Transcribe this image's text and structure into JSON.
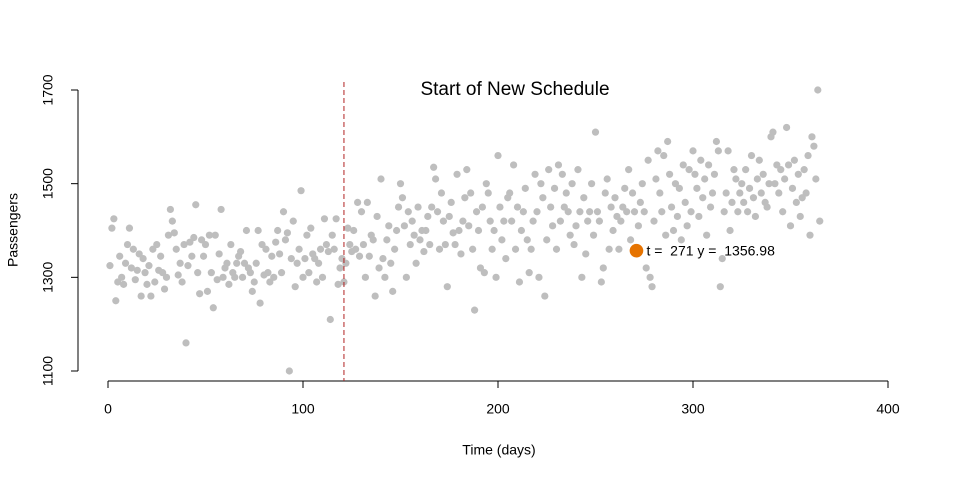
{
  "chart_data": {
    "type": "scatter",
    "x_label": "Time (days)",
    "y_label": "Passengers",
    "annotation": "Start of New Schedule",
    "annotation_color": "#b22222",
    "vline": {
      "x": 121,
      "color": "#b22222"
    },
    "highlight": {
      "x": 271,
      "y": 1356.98,
      "label": "t =  271 y =  1356.98",
      "color": "#e67300"
    },
    "xlim": [
      0,
      400
    ],
    "xticks": [
      0,
      100,
      200,
      300,
      400
    ],
    "ylim": [
      1100,
      1700
    ],
    "yticks": [
      1100,
      1300,
      1500,
      1700
    ],
    "series": [
      {
        "color": "#bebebe",
        "x": [
          1,
          2,
          3,
          4,
          5,
          6,
          7,
          8,
          9,
          10,
          11,
          12,
          13,
          14,
          15,
          16,
          17,
          18,
          19,
          20,
          21,
          22,
          23,
          24,
          25,
          26,
          27,
          28,
          29,
          30,
          31,
          32,
          33,
          34,
          35,
          36,
          37,
          38,
          39,
          40,
          41,
          42,
          43,
          44,
          45,
          46,
          47,
          48,
          49,
          50,
          51,
          52,
          53,
          54,
          55,
          56,
          57,
          58,
          59,
          60,
          61,
          62,
          63,
          64,
          65,
          66,
          67,
          68,
          69,
          70,
          71,
          72,
          73,
          74,
          75,
          76,
          77,
          78,
          79,
          80,
          81,
          82,
          83,
          84,
          85,
          86,
          87,
          88,
          89,
          90,
          91,
          92,
          93,
          94,
          95,
          96,
          97,
          98,
          99,
          100,
          101,
          102,
          103,
          104,
          105,
          106,
          107,
          108,
          109,
          110,
          111,
          112,
          113,
          114,
          115,
          116,
          117,
          118,
          119,
          120,
          121,
          122,
          123,
          124,
          125,
          126,
          127,
          128,
          129,
          130,
          131,
          132,
          133,
          134,
          135,
          136,
          137,
          138,
          139,
          140,
          141,
          142,
          143,
          144,
          145,
          146,
          147,
          148,
          149,
          150,
          151,
          152,
          153,
          154,
          155,
          156,
          157,
          158,
          159,
          160,
          161,
          162,
          163,
          164,
          165,
          166,
          167,
          168,
          169,
          170,
          171,
          172,
          173,
          174,
          175,
          176,
          177,
          178,
          179,
          180,
          181,
          182,
          183,
          184,
          185,
          186,
          187,
          188,
          189,
          190,
          191,
          192,
          193,
          194,
          195,
          196,
          197,
          198,
          199,
          200,
          201,
          202,
          203,
          204,
          205,
          206,
          207,
          208,
          209,
          210,
          211,
          212,
          213,
          214,
          215,
          216,
          217,
          218,
          219,
          220,
          221,
          222,
          223,
          224,
          225,
          226,
          227,
          228,
          229,
          230,
          231,
          232,
          233,
          234,
          235,
          236,
          237,
          238,
          239,
          240,
          241,
          242,
          243,
          244,
          245,
          246,
          247,
          248,
          249,
          250,
          251,
          252,
          253,
          254,
          255,
          256,
          257,
          258,
          259,
          260,
          261,
          262,
          263,
          264,
          265,
          266,
          267,
          268,
          269,
          270,
          271,
          272,
          273,
          274,
          275,
          276,
          277,
          278,
          279,
          280,
          281,
          282,
          283,
          284,
          285,
          286,
          287,
          288,
          289,
          290,
          291,
          292,
          293,
          294,
          295,
          296,
          297,
          298,
          299,
          300,
          301,
          302,
          303,
          304,
          305,
          306,
          307,
          308,
          309,
          310,
          311,
          312,
          313,
          314,
          315,
          316,
          317,
          318,
          319,
          320,
          321,
          322,
          323,
          324,
          325,
          326,
          327,
          328,
          329,
          330,
          331,
          332,
          333,
          334,
          335,
          336,
          337,
          338,
          339,
          340,
          341,
          342,
          343,
          344,
          345,
          346,
          347,
          348,
          349,
          350,
          351,
          352,
          353,
          354,
          355,
          356,
          357,
          358,
          359,
          360,
          361,
          362,
          363,
          364,
          365
        ],
        "values": [
          1325,
          1405,
          1425,
          1250,
          1290,
          1345,
          1300,
          1285,
          1330,
          1370,
          1405,
          1320,
          1360,
          1295,
          1315,
          1350,
          1260,
          1340,
          1310,
          1285,
          1325,
          1260,
          1360,
          1290,
          1370,
          1315,
          1345,
          1310,
          1275,
          1300,
          1390,
          1445,
          1420,
          1395,
          1360,
          1305,
          1330,
          1290,
          1370,
          1160,
          1325,
          1375,
          1345,
          1385,
          1455,
          1310,
          1265,
          1380,
          1345,
          1370,
          1270,
          1390,
          1310,
          1235,
          1390,
          1295,
          1350,
          1445,
          1300,
          1320,
          1330,
          1285,
          1370,
          1310,
          1300,
          1330,
          1345,
          1355,
          1300,
          1330,
          1400,
          1320,
          1310,
          1270,
          1290,
          1330,
          1400,
          1245,
          1370,
          1305,
          1360,
          1310,
          1290,
          1345,
          1300,
          1375,
          1400,
          1350,
          1310,
          1440,
          1380,
          1395,
          1100,
          1340,
          1420,
          1280,
          1330,
          1360,
          1485,
          1300,
          1340,
          1390,
          1310,
          1405,
          1350,
          1340,
          1290,
          1330,
          1360,
          1300,
          1425,
          1370,
          1355,
          1210,
          1390,
          1360,
          1425,
          1285,
          1320,
          1340,
          1290,
          1330,
          1405,
          1370,
          1355,
          1400,
          1360,
          1460,
          1345,
          1440,
          1370,
          1300,
          1460,
          1345,
          1390,
          1380,
          1260,
          1430,
          1320,
          1510,
          1340,
          1300,
          1380,
          1410,
          1330,
          1270,
          1360,
          1400,
          1450,
          1500,
          1470,
          1410,
          1300,
          1440,
          1370,
          1420,
          1390,
          1330,
          1450,
          1380,
          1400,
          1355,
          1400,
          1430,
          1370,
          1450,
          1535,
          1510,
          1440,
          1360,
          1480,
          1420,
          1370,
          1280,
          1430,
          1460,
          1395,
          1370,
          1520,
          1400,
          1350,
          1420,
          1470,
          1530,
          1410,
          1480,
          1360,
          1230,
          1440,
          1400,
          1320,
          1450,
          1310,
          1500,
          1480,
          1420,
          1360,
          1400,
          1300,
          1560,
          1450,
          1380,
          1420,
          1340,
          1470,
          1480,
          1420,
          1540,
          1360,
          1450,
          1290,
          1400,
          1440,
          1490,
          1380,
          1310,
          1360,
          1420,
          1520,
          1440,
          1300,
          1500,
          1470,
          1260,
          1380,
          1530,
          1450,
          1410,
          1490,
          1360,
          1540,
          1420,
          1520,
          1450,
          1480,
          1440,
          1390,
          1500,
          1370,
          1410,
          1530,
          1440,
          1300,
          1470,
          1350,
          1420,
          1440,
          1500,
          1390,
          1610,
          1440,
          1420,
          1290,
          1320,
          1480,
          1510,
          1360,
          1450,
          1400,
          1470,
          1430,
          1360,
          1420,
          1450,
          1490,
          1440,
          1530,
          1380,
          1480,
          1440,
          1356.98,
          1410,
          1460,
          1500,
          1440,
          1320,
          1550,
          1300,
          1280,
          1420,
          1510,
          1570,
          1480,
          1440,
          1560,
          1390,
          1590,
          1520,
          1450,
          1400,
          1500,
          1430,
          1490,
          1380,
          1540,
          1460,
          1410,
          1530,
          1440,
          1570,
          1520,
          1490,
          1430,
          1550,
          1470,
          1510,
          1390,
          1540,
          1450,
          1480,
          1520,
          1590,
          1570,
          1280,
          1340,
          1440,
          1480,
          1570,
          1400,
          1460,
          1530,
          1510,
          1440,
          1480,
          1500,
          1460,
          1530,
          1440,
          1490,
          1560,
          1470,
          1430,
          1510,
          1550,
          1480,
          1520,
          1460,
          1450,
          1500,
          1600,
          1610,
          1500,
          1540,
          1480,
          1530,
          1440,
          1510,
          1620,
          1540,
          1410,
          1490,
          1550,
          1460,
          1520,
          1430,
          1470,
          1530,
          1480,
          1560,
          1390,
          1600,
          1580,
          1510,
          1700,
          1420
        ]
      }
    ]
  }
}
